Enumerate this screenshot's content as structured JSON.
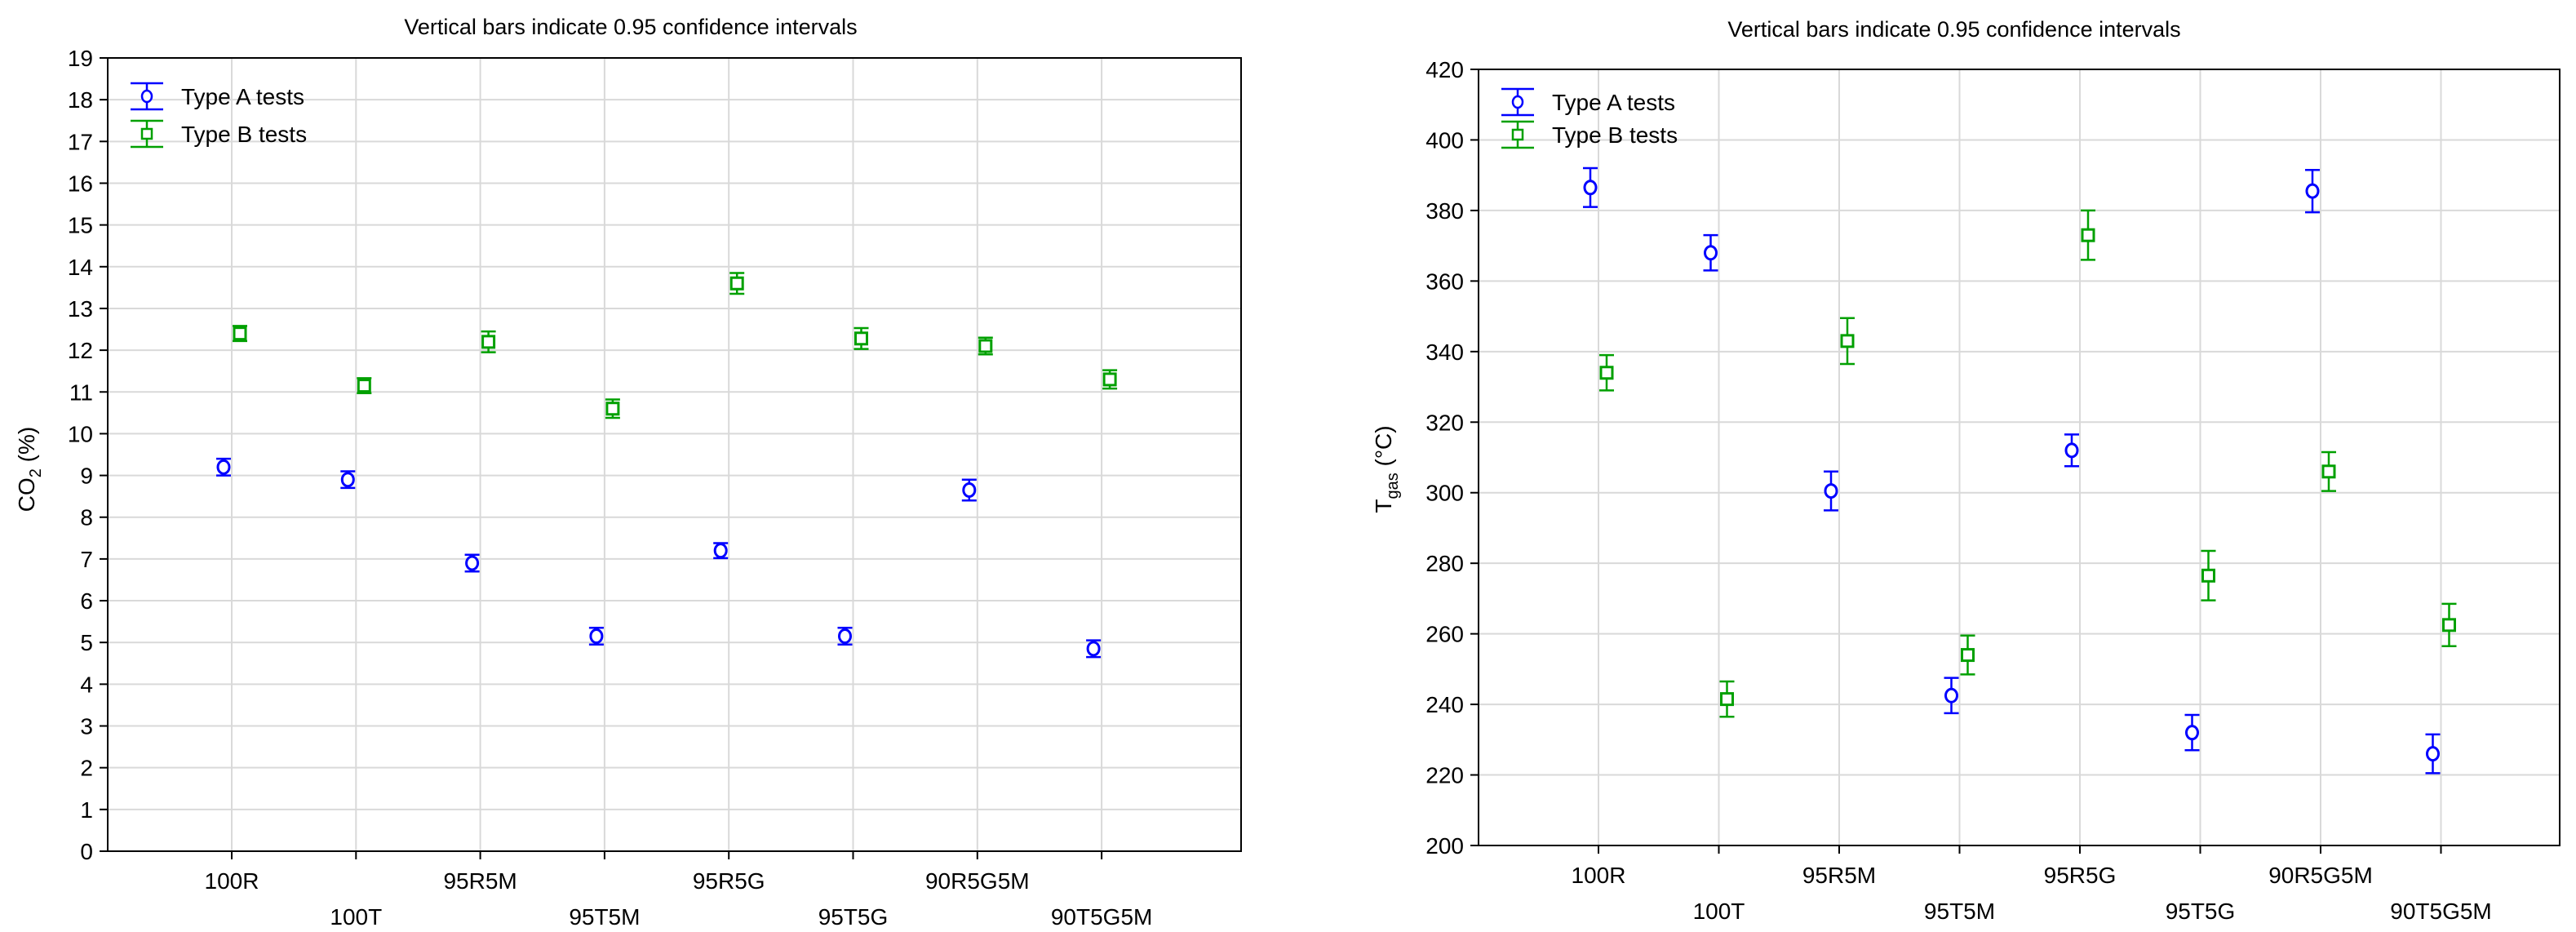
{
  "figure_title": "Two error-bar charts: CO2 and Tgas by fuel blend",
  "colors": {
    "type_a": "#0000ff",
    "type_b": "#00a000",
    "grid": "#d9d9d9",
    "axis": "#000000"
  },
  "chart_data": [
    {
      "type": "scatter",
      "title": "Vertical bars indicate 0.95 confidence intervals",
      "ylabel_main": "CO",
      "ylabel_sub": "2",
      "ylabel_rest": " (%)",
      "xlabel": "",
      "ylim": [
        0,
        19
      ],
      "yticks": [
        0,
        1,
        2,
        3,
        4,
        5,
        6,
        7,
        8,
        9,
        10,
        11,
        12,
        13,
        14,
        15,
        16,
        17,
        18,
        19
      ],
      "grid": true,
      "legend_position": "top-left",
      "categories": [
        "100R",
        "100T",
        "95R5M",
        "95T5M",
        "95R5G",
        "95T5G",
        "90R5G5M",
        "90T5G5M"
      ],
      "series": [
        {
          "name": "Type A tests",
          "marker": "circle",
          "values": [
            9.2,
            8.9,
            6.9,
            5.15,
            7.2,
            5.15,
            8.65,
            4.85
          ],
          "ci": [
            0.2,
            0.2,
            0.2,
            0.2,
            0.18,
            0.2,
            0.25,
            0.2
          ]
        },
        {
          "name": "Type B tests",
          "marker": "square",
          "values": [
            12.4,
            11.15,
            12.2,
            10.6,
            13.6,
            12.28,
            12.1,
            11.3
          ],
          "ci": [
            0.18,
            0.18,
            0.25,
            0.22,
            0.25,
            0.25,
            0.2,
            0.22
          ]
        }
      ]
    },
    {
      "type": "scatter",
      "title": "Vertical bars indicate 0.95 confidence intervals",
      "ylabel_main": "T",
      "ylabel_sub": "gas",
      "ylabel_rest": " (°C)",
      "xlabel": "",
      "ylim": [
        200,
        420
      ],
      "yticks": [
        200,
        220,
        240,
        260,
        280,
        300,
        320,
        340,
        360,
        380,
        400,
        420
      ],
      "grid": true,
      "legend_position": "top-left",
      "categories": [
        "100R",
        "100T",
        "95R5M",
        "95T5M",
        "95R5G",
        "95T5G",
        "90R5G5M",
        "90T5G5M"
      ],
      "series": [
        {
          "name": "Type A tests",
          "marker": "circle",
          "values": [
            386.5,
            368,
            300.5,
            242.5,
            312,
            232,
            385.5,
            226
          ],
          "ci": [
            5.5,
            5,
            5.5,
            5,
            4.5,
            5,
            6,
            5.5
          ]
        },
        {
          "name": "Type B tests",
          "marker": "square",
          "values": [
            334,
            241.5,
            343,
            254,
            373,
            276.5,
            306,
            262.5
          ],
          "ci": [
            5,
            5,
            6.5,
            5.5,
            7,
            7,
            5.5,
            6
          ]
        }
      ]
    }
  ]
}
